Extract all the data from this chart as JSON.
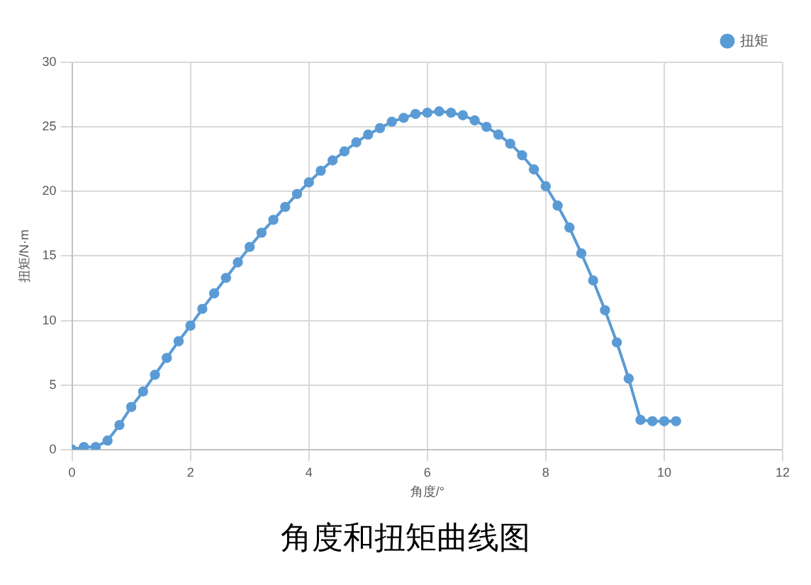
{
  "chart_data": {
    "type": "line",
    "title": "角度和扭矩曲线图",
    "xlabel": "角度/°",
    "ylabel": "扭矩/N·m",
    "x": [
      0,
      0.2,
      0.4,
      0.6,
      0.8,
      1.0,
      1.2,
      1.4,
      1.6,
      1.8,
      2.0,
      2.2,
      2.4,
      2.6,
      2.8,
      3.0,
      3.2,
      3.4,
      3.6,
      3.8,
      4.0,
      4.2,
      4.4,
      4.6,
      4.8,
      5.0,
      5.2,
      5.4,
      5.6,
      5.8,
      6.0,
      6.2,
      6.4,
      6.6,
      6.8,
      7.0,
      7.2,
      7.4,
      7.6,
      7.8,
      8.0,
      8.2,
      8.4,
      8.6,
      8.8,
      9.0,
      9.2,
      9.4,
      9.6,
      9.8,
      10.0,
      10.2
    ],
    "series": [
      {
        "name": "扭矩",
        "color": "#5b9bd5",
        "values": [
          0,
          0.2,
          0.2,
          0.7,
          1.9,
          3.3,
          4.5,
          5.8,
          7.1,
          8.4,
          9.6,
          10.9,
          12.1,
          13.3,
          14.5,
          15.7,
          16.8,
          17.8,
          18.8,
          19.8,
          20.7,
          21.6,
          22.4,
          23.1,
          23.8,
          24.4,
          24.9,
          25.4,
          25.7,
          26.0,
          26.1,
          26.2,
          26.1,
          25.9,
          25.5,
          25.0,
          24.4,
          23.7,
          22.8,
          21.7,
          20.4,
          18.9,
          17.2,
          15.2,
          13.1,
          10.8,
          8.3,
          5.5,
          2.3,
          2.2,
          2.2,
          2.2
        ]
      }
    ],
    "xlim": [
      0,
      12
    ],
    "xticks": [
      0,
      2,
      4,
      6,
      8,
      10,
      12
    ],
    "ylim": [
      0,
      30
    ],
    "yticks": [
      0,
      5,
      10,
      15,
      20,
      25,
      30
    ],
    "grid": true,
    "legend": "top right",
    "marker": "circle",
    "line_style": "solid"
  }
}
